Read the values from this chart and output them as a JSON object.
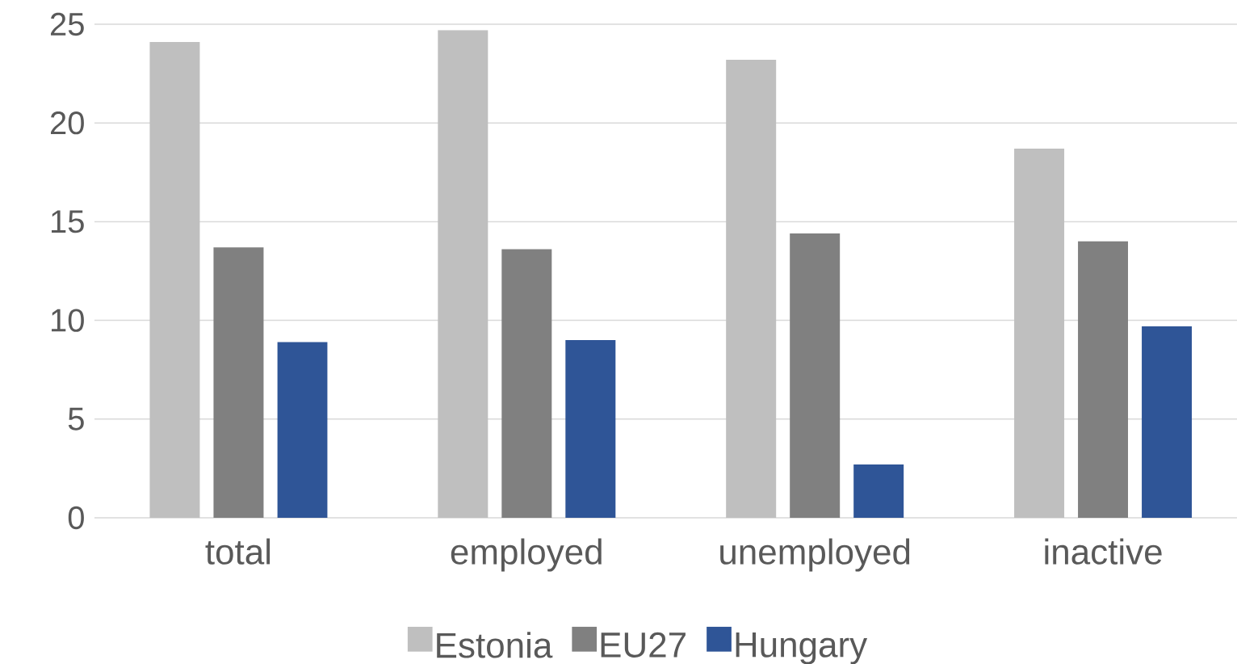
{
  "chart_data": {
    "type": "bar",
    "categories": [
      "total",
      "employed",
      "unemployed",
      "inactive"
    ],
    "series": [
      {
        "name": "Estonia",
        "color": "#bfbfbf",
        "values": [
          24.1,
          24.7,
          23.2,
          18.7
        ]
      },
      {
        "name": "EU27",
        "color": "#808080",
        "values": [
          13.7,
          13.6,
          14.4,
          14.0
        ]
      },
      {
        "name": "Hungary",
        "color": "#2f5597",
        "values": [
          8.9,
          9.0,
          2.7,
          9.7
        ]
      }
    ],
    "ylim": [
      0,
      25
    ],
    "yticks": [
      0,
      5,
      10,
      15,
      20,
      25
    ],
    "grid": "y",
    "legend": "bottom"
  }
}
